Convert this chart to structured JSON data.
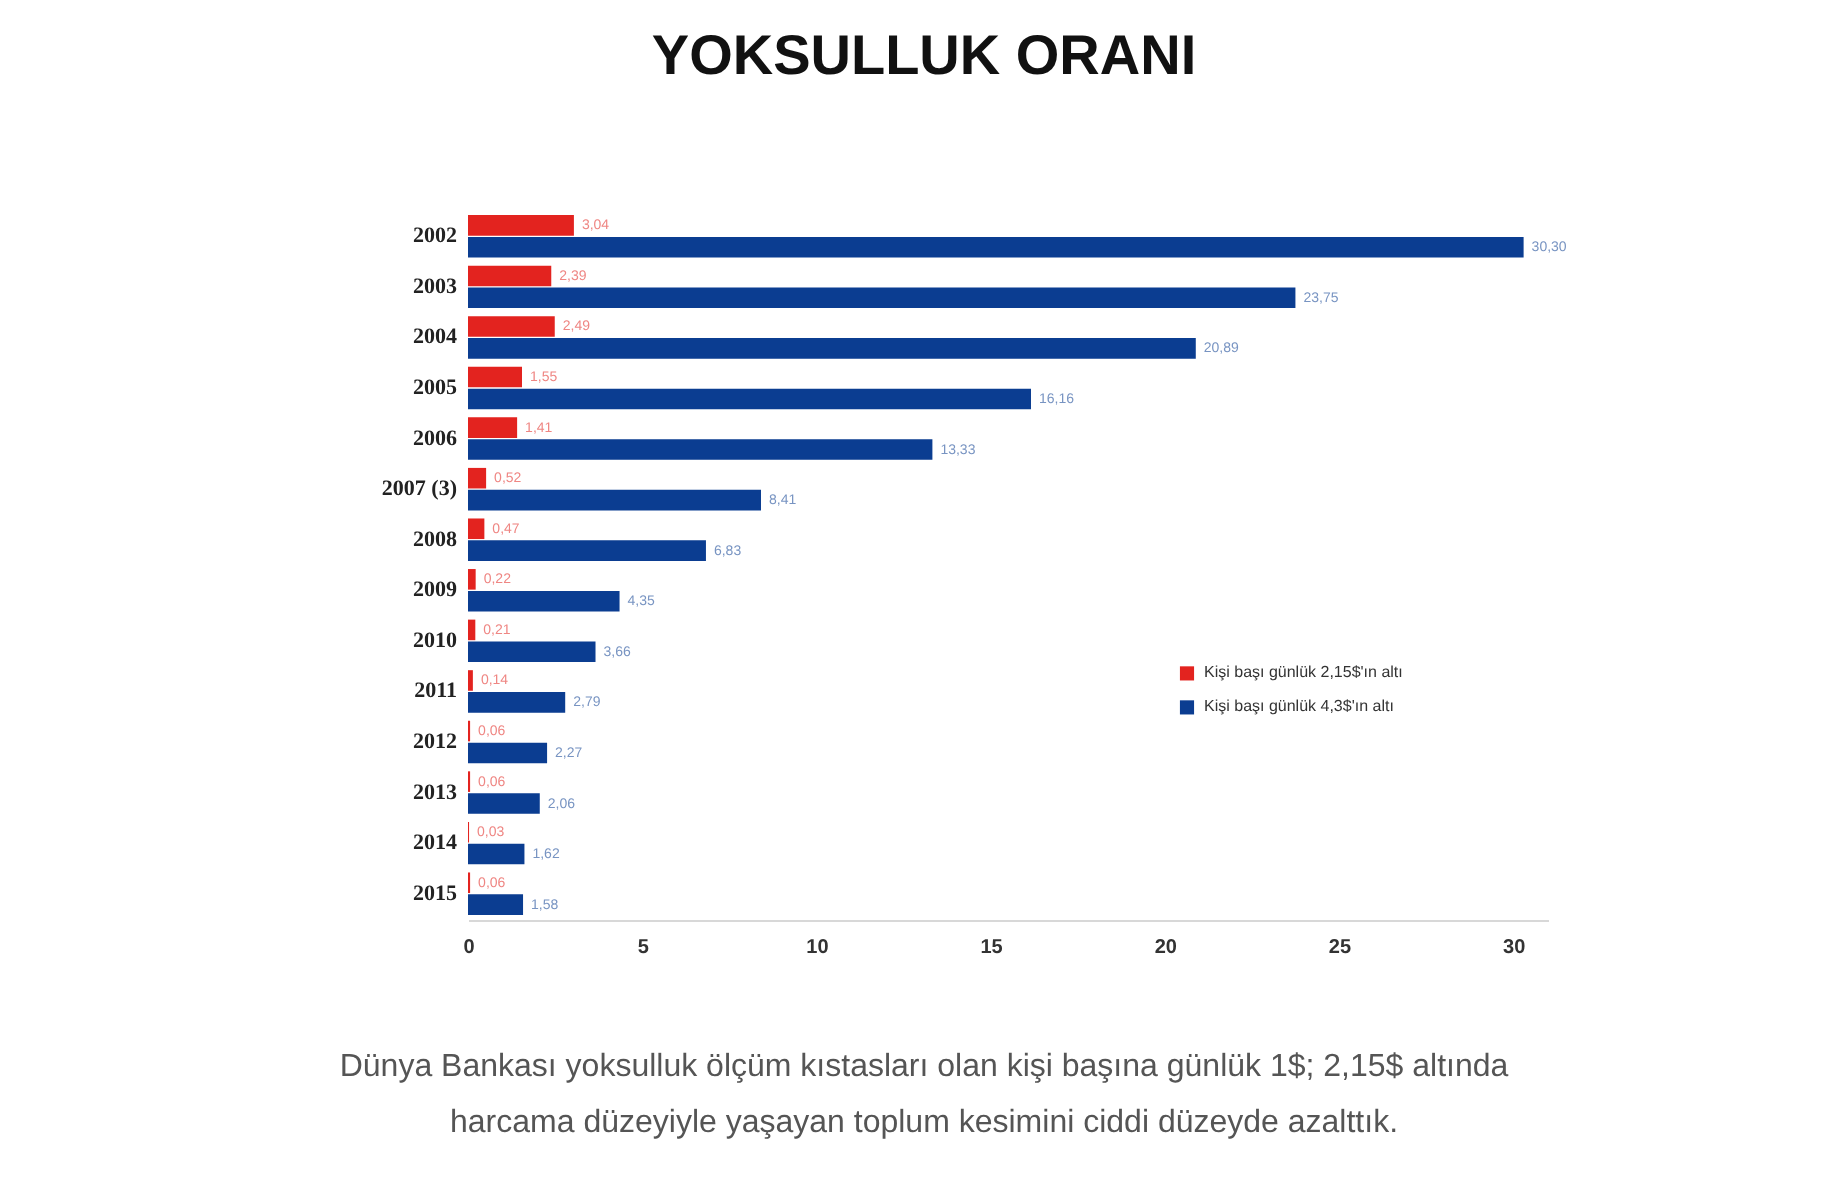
{
  "chart_data": {
    "type": "bar",
    "orientation": "horizontal",
    "title": "YOKSULLUK ORANI",
    "categories": [
      "2002",
      "2003",
      "2004",
      "2005",
      "2006",
      "2007 (3)",
      "2008",
      "2009",
      "2010",
      "2011",
      "2012",
      "2013",
      "2014",
      "2015"
    ],
    "series": [
      {
        "name": "Kişi başı günlük 2,15$'ın altı",
        "color": "#e3231f",
        "values": [
          3.04,
          2.39,
          2.49,
          1.55,
          1.41,
          0.52,
          0.47,
          0.22,
          0.21,
          0.14,
          0.06,
          0.06,
          0.03,
          0.06
        ],
        "value_labels": [
          "3,04",
          "2,39",
          "2,49",
          "1,55",
          "1,41",
          "0,52",
          "0,47",
          "0,22",
          "0,21",
          "0,14",
          "0,06",
          "0,06",
          "0,03",
          "0,06"
        ]
      },
      {
        "name": "Kişi başı günlük 4,3$'ın altı",
        "color": "#0b3d91",
        "values": [
          30.3,
          23.75,
          20.89,
          16.16,
          13.33,
          8.41,
          6.83,
          4.35,
          3.66,
          2.79,
          2.27,
          2.06,
          1.62,
          1.58
        ],
        "value_labels": [
          "30,30",
          "23,75",
          "20,89",
          "16,16",
          "13,33",
          "8,41",
          "6,83",
          "4,35",
          "3,66",
          "2,79",
          "2,27",
          "2,06",
          "1,62",
          "1,58"
        ]
      }
    ],
    "xlim": [
      0,
      31
    ],
    "xticks": [
      0,
      5,
      10,
      15,
      20,
      25,
      30
    ],
    "legend": "right",
    "annotations": [
      "Dünya Bankası yoksulluk ölçüm kıstasları olan kişi başına günlük 1$; 2,15$ altında\nharcama düzeyiyle yaşayan toplum kesimini ciddi düzeyde azalttık."
    ]
  }
}
